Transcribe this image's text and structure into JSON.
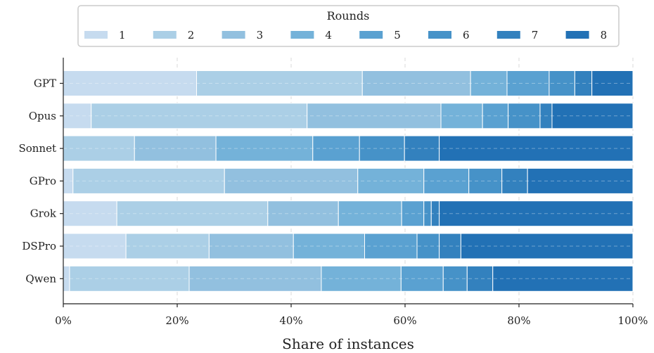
{
  "chart_data": {
    "type": "bar",
    "orientation": "horizontal",
    "stacked": true,
    "xlabel": "Share of instances",
    "ylabel": "",
    "xlim": [
      0,
      100
    ],
    "x_tick_labels": [
      "0%",
      "20%",
      "40%",
      "60%",
      "80%",
      "100%"
    ],
    "x_ticks": [
      0,
      20,
      40,
      60,
      80,
      100
    ],
    "grid": true,
    "legend": {
      "title": "Rounds",
      "placement": "top-center",
      "entries": [
        "1",
        "2",
        "3",
        "4",
        "5",
        "6",
        "7",
        "8"
      ]
    },
    "categories": [
      "GPT",
      "Opus",
      "Sonnet",
      "GPro",
      "Grok",
      "DSPro",
      "Qwen"
    ],
    "series": [
      {
        "name": "1",
        "color": "#c6dbef",
        "values": [
          23.4,
          4.9,
          0.0,
          1.7,
          9.4,
          11.0,
          1.1
        ]
      },
      {
        "name": "2",
        "color": "#abcfe6",
        "values": [
          29.1,
          37.9,
          12.5,
          26.6,
          26.5,
          14.6,
          21.0
        ]
      },
      {
        "name": "3",
        "color": "#92c0df",
        "values": [
          19.0,
          23.5,
          14.3,
          23.4,
          12.4,
          14.8,
          23.2
        ]
      },
      {
        "name": "4",
        "color": "#74b2d9",
        "values": [
          6.4,
          7.3,
          17.0,
          11.6,
          11.1,
          12.5,
          14.0
        ]
      },
      {
        "name": "5",
        "color": "#5aa1d1",
        "values": [
          7.4,
          4.5,
          8.2,
          7.9,
          3.9,
          9.2,
          7.4
        ]
      },
      {
        "name": "6",
        "color": "#4692c8",
        "values": [
          4.5,
          5.6,
          7.9,
          5.8,
          1.3,
          3.9,
          4.2
        ]
      },
      {
        "name": "7",
        "color": "#3381be",
        "values": [
          3.0,
          2.1,
          6.1,
          4.5,
          1.4,
          3.8,
          4.5
        ]
      },
      {
        "name": "8",
        "color": "#2271b5",
        "values": [
          7.2,
          14.2,
          34.0,
          18.5,
          34.0,
          30.2,
          24.6
        ]
      }
    ]
  }
}
